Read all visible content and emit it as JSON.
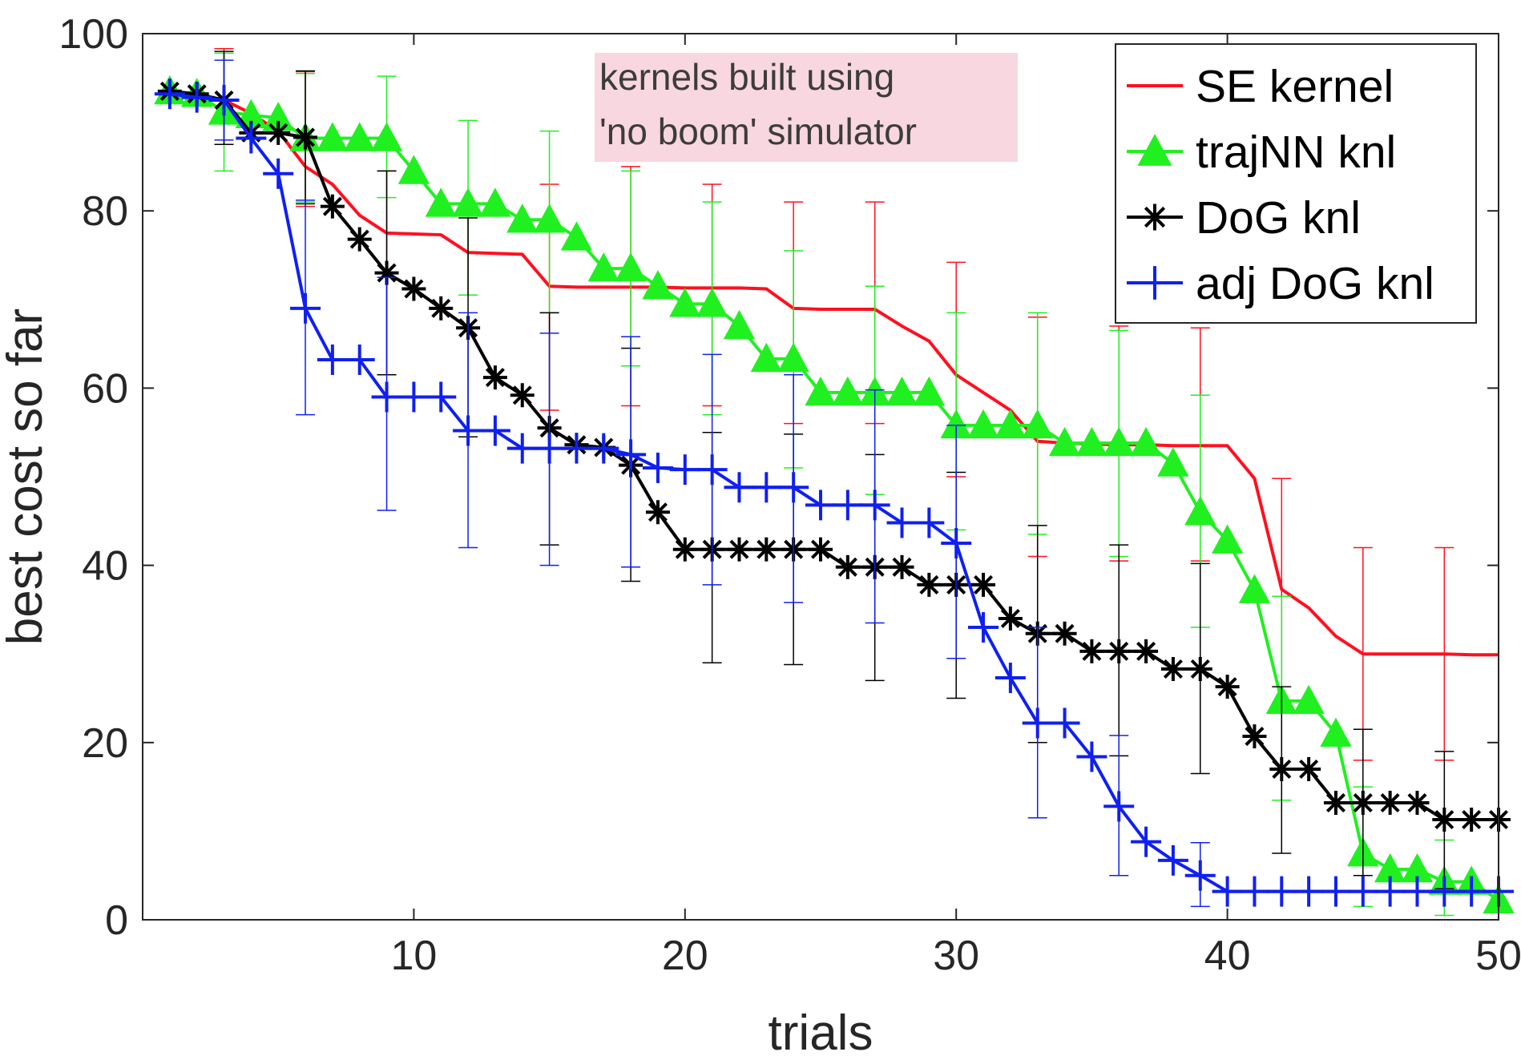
{
  "chart_data": {
    "type": "line",
    "xlabel": "trials",
    "ylabel": "best cost so far",
    "xlim": [
      0,
      50
    ],
    "ylim": [
      0,
      100
    ],
    "x_ticks": [
      10,
      20,
      30,
      40,
      50
    ],
    "y_ticks": [
      0,
      20,
      40,
      60,
      80,
      100
    ],
    "x_tick_labels": [
      "10",
      "20",
      "30",
      "40",
      "50"
    ],
    "y_tick_labels": [
      "0",
      "20",
      "40",
      "60",
      "80",
      "100"
    ],
    "grid": false,
    "legend_position": "top-right",
    "annotation": {
      "lines": [
        "kernels built using",
        "'no boom' simulator"
      ],
      "background": "#f8d7e0",
      "position": "top-center"
    },
    "x": [
      1,
      2,
      3,
      4,
      5,
      6,
      7,
      8,
      9,
      10,
      11,
      12,
      13,
      14,
      15,
      16,
      17,
      18,
      19,
      20,
      21,
      22,
      23,
      24,
      25,
      26,
      27,
      28,
      29,
      30,
      31,
      32,
      33,
      34,
      35,
      36,
      37,
      38,
      39,
      40,
      41,
      42,
      43,
      44,
      45,
      46,
      47,
      48,
      49,
      50
    ],
    "series": [
      {
        "name": "SE kernel",
        "color": "#ff1020",
        "marker": "none",
        "values": [
          93,
          93,
          92.5,
          91,
          89,
          85,
          83,
          79.5,
          77.5,
          77.4,
          77.3,
          75.3,
          75.2,
          75.1,
          71.5,
          71.4,
          71.4,
          71.4,
          71.4,
          71.3,
          71.3,
          71.3,
          71.2,
          69,
          68.9,
          68.9,
          68.9,
          67,
          65.3,
          61.5,
          59.5,
          57.5,
          54,
          53.8,
          53.7,
          53.6,
          53.6,
          53.5,
          53.5,
          53.5,
          49.8,
          37.3,
          35.2,
          32,
          30,
          30,
          30,
          30,
          29.9,
          29.9
        ],
        "errorbars": [
          {
            "x": 3,
            "low": 87.5,
            "high": 98.3
          },
          {
            "x": 6,
            "low": 80.5,
            "high": 95.7
          },
          {
            "x": 9,
            "low": 61.5,
            "high": 84.5
          },
          {
            "x": 12,
            "low": 70.5,
            "high": 79.5
          },
          {
            "x": 15,
            "low": 57.5,
            "high": 83.0
          },
          {
            "x": 18,
            "low": 58.0,
            "high": 85.0
          },
          {
            "x": 21,
            "low": 58.0,
            "high": 83.0
          },
          {
            "x": 24,
            "low": 56.0,
            "high": 81.0
          },
          {
            "x": 27,
            "low": 56.0,
            "high": 81.0
          },
          {
            "x": 30,
            "low": 50.0,
            "high": 74.2
          },
          {
            "x": 33,
            "low": 41.0,
            "high": 68.0
          },
          {
            "x": 36,
            "low": 40.5,
            "high": 67.0
          },
          {
            "x": 39,
            "low": 40.5,
            "high": 66.8
          },
          {
            "x": 42,
            "low": 24.5,
            "high": 49.8
          },
          {
            "x": 45,
            "low": 18.0,
            "high": 42.0
          },
          {
            "x": 48,
            "low": 18.0,
            "high": 42.0
          }
        ]
      },
      {
        "name": "trajNN knl",
        "color": "#20f020",
        "marker": "triangle",
        "values": [
          93.5,
          93.2,
          91.2,
          90.8,
          90.5,
          88.2,
          88.2,
          88.2,
          88.2,
          84.5,
          80.8,
          80.8,
          80.8,
          79,
          79,
          77,
          73.5,
          73.5,
          71.5,
          69.5,
          69.5,
          67,
          63.3,
          63.3,
          59.5,
          59.5,
          59.5,
          59.5,
          59.5,
          55.8,
          55.8,
          55.8,
          55.8,
          53.8,
          53.8,
          53.8,
          53.8,
          51.5,
          46,
          42.8,
          37.2,
          24.7,
          24.7,
          21,
          7.5,
          5.7,
          5.7,
          4.3,
          4.3,
          2.2
        ],
        "errorbars": [
          {
            "x": 3,
            "low": 84.5,
            "high": 97.8
          },
          {
            "x": 6,
            "low": 81.0,
            "high": 95.5
          },
          {
            "x": 9,
            "low": 81.5,
            "high": 95.2
          },
          {
            "x": 12,
            "low": 70.5,
            "high": 90.2
          },
          {
            "x": 15,
            "low": 68.5,
            "high": 89.0
          },
          {
            "x": 18,
            "low": 62.5,
            "high": 84.5
          },
          {
            "x": 21,
            "low": 57.0,
            "high": 81.0
          },
          {
            "x": 24,
            "low": 51.0,
            "high": 75.5
          },
          {
            "x": 27,
            "low": 48.0,
            "high": 71.5
          },
          {
            "x": 30,
            "low": 44.0,
            "high": 68.5
          },
          {
            "x": 33,
            "low": 43.5,
            "high": 68.5
          },
          {
            "x": 36,
            "low": 41.0,
            "high": 66.5
          },
          {
            "x": 39,
            "low": 33.0,
            "high": 59.2
          },
          {
            "x": 42,
            "low": 13.5,
            "high": 36.5
          },
          {
            "x": 45,
            "low": 1.5,
            "high": 15.0
          },
          {
            "x": 48,
            "low": 0.5,
            "high": 9.0
          }
        ]
      },
      {
        "name": "DoG knl",
        "color": "#000000",
        "marker": "asterisk",
        "values": [
          93.5,
          93.2,
          92.5,
          88.8,
          88.8,
          88.3,
          80.5,
          76.8,
          73,
          71.2,
          69,
          66.8,
          61.2,
          59.2,
          55.5,
          53.6,
          53.3,
          51.3,
          46,
          41.8,
          41.8,
          41.8,
          41.8,
          41.8,
          41.8,
          39.8,
          39.8,
          39.8,
          37.8,
          37.8,
          37.8,
          34,
          32.3,
          32.3,
          30.3,
          30.3,
          30.3,
          28.3,
          28.3,
          26.3,
          20.7,
          17,
          17,
          13.2,
          13.2,
          13.2,
          13.2,
          11.3,
          11.3,
          11.3
        ],
        "errorbars": [
          {
            "x": 3,
            "low": 87.5,
            "high": 98.0
          },
          {
            "x": 6,
            "low": 80.8,
            "high": 95.8
          },
          {
            "x": 9,
            "low": 61.5,
            "high": 84.5
          },
          {
            "x": 12,
            "low": 54.5,
            "high": 79.2
          },
          {
            "x": 15,
            "low": 42.3,
            "high": 68.5
          },
          {
            "x": 18,
            "low": 38.2,
            "high": 64.5
          },
          {
            "x": 21,
            "low": 29.0,
            "high": 55.0
          },
          {
            "x": 24,
            "low": 28.8,
            "high": 54.8
          },
          {
            "x": 27,
            "low": 27.0,
            "high": 52.5
          },
          {
            "x": 30,
            "low": 25.0,
            "high": 50.5
          },
          {
            "x": 33,
            "low": 20.0,
            "high": 44.5
          },
          {
            "x": 36,
            "low": 18.5,
            "high": 42.3
          },
          {
            "x": 39,
            "low": 16.5,
            "high": 40.2
          },
          {
            "x": 42,
            "low": 7.5,
            "high": 26.3
          },
          {
            "x": 45,
            "low": 5.0,
            "high": 21.5
          },
          {
            "x": 48,
            "low": 3.5,
            "high": 19.0
          }
        ]
      },
      {
        "name": "adj DoG knl",
        "color": "#1020f0",
        "marker": "plus",
        "values": [
          93.2,
          92.8,
          92.5,
          88.2,
          84.2,
          69,
          63.2,
          63.2,
          59,
          59,
          59,
          55.2,
          55.2,
          53.2,
          53.2,
          53.2,
          53.2,
          52.5,
          51,
          50.8,
          50.8,
          48.8,
          48.8,
          48.8,
          46.8,
          46.8,
          46.8,
          44.8,
          44.8,
          42.5,
          33,
          27.3,
          22.2,
          22.2,
          18.4,
          12.8,
          8.8,
          6.7,
          5,
          3.2,
          3.2,
          3.2,
          3.2,
          3.2,
          3.2,
          3.2,
          3.2,
          3.2,
          3.2,
          3.2
        ],
        "errorbars": [
          {
            "x": 3,
            "low": 88.0,
            "high": 97.0
          },
          {
            "x": 6,
            "low": 57.0,
            "high": 81.2
          },
          {
            "x": 9,
            "low": 46.2,
            "high": 72.5
          },
          {
            "x": 12,
            "low": 42.0,
            "high": 68.5
          },
          {
            "x": 15,
            "low": 40.0,
            "high": 66.2
          },
          {
            "x": 18,
            "low": 39.8,
            "high": 65.8
          },
          {
            "x": 21,
            "low": 37.8,
            "high": 63.8
          },
          {
            "x": 24,
            "low": 35.8,
            "high": 61.5
          },
          {
            "x": 27,
            "low": 33.5,
            "high": 59.8
          },
          {
            "x": 30,
            "low": 29.5,
            "high": 55.8
          },
          {
            "x": 33,
            "low": 11.5,
            "high": 33.0
          },
          {
            "x": 36,
            "low": 5.0,
            "high": 20.8
          },
          {
            "x": 39,
            "low": 1.5,
            "high": 8.7
          }
        ]
      }
    ]
  }
}
